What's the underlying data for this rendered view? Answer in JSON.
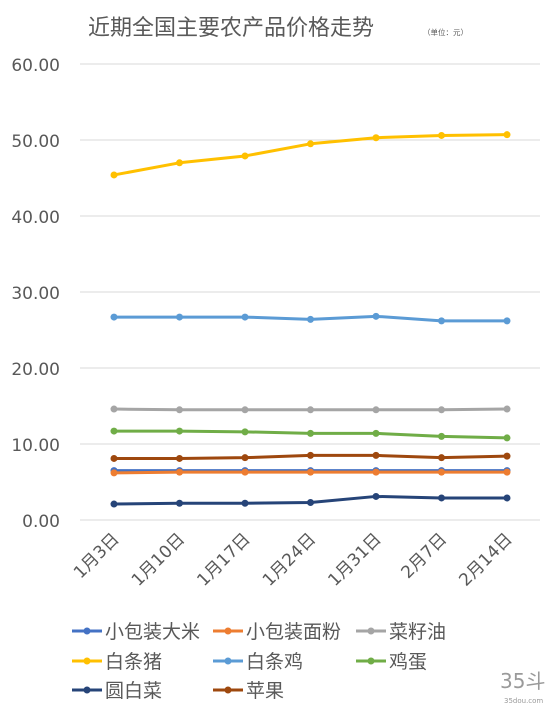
{
  "chart_data": {
    "type": "line",
    "title": "近期全国主要农产品价格走势",
    "unit_note": "（单位：元）",
    "categories": [
      "1月3日",
      "1月10日",
      "1月17日",
      "1月24日",
      "1月31日",
      "2月7日",
      "2月14日"
    ],
    "ylim": [
      0,
      60
    ],
    "yticks": [
      "0.00",
      "10.00",
      "20.00",
      "30.00",
      "40.00",
      "50.00",
      "60.00"
    ],
    "grid": true,
    "legend_position": "bottom",
    "series": [
      {
        "name": "小包装大米",
        "color": "#4472C4",
        "values": [
          6.5,
          6.5,
          6.5,
          6.5,
          6.5,
          6.5,
          6.5
        ]
      },
      {
        "name": "小包装面粉",
        "color": "#ED7D31",
        "values": [
          6.2,
          6.3,
          6.3,
          6.3,
          6.3,
          6.3,
          6.3
        ]
      },
      {
        "name": "菜籽油",
        "color": "#A5A5A5",
        "values": [
          14.6,
          14.5,
          14.5,
          14.5,
          14.5,
          14.5,
          14.6
        ]
      },
      {
        "name": "白条猪",
        "color": "#FFC000",
        "values": [
          45.4,
          47.0,
          47.9,
          49.5,
          50.3,
          50.6,
          50.7
        ]
      },
      {
        "name": "白条鸡",
        "color": "#5B9BD5",
        "values": [
          26.7,
          26.7,
          26.7,
          26.4,
          26.8,
          26.2,
          26.2
        ]
      },
      {
        "name": "鸡蛋",
        "color": "#70AD47",
        "values": [
          11.7,
          11.7,
          11.6,
          11.4,
          11.4,
          11.0,
          10.8
        ]
      },
      {
        "name": "圆白菜",
        "color": "#264478",
        "values": [
          2.1,
          2.2,
          2.2,
          2.3,
          3.1,
          2.9,
          2.9
        ]
      },
      {
        "name": "苹果",
        "color": "#9E480E",
        "values": [
          8.1,
          8.1,
          8.2,
          8.5,
          8.5,
          8.2,
          8.4
        ]
      }
    ]
  },
  "watermark": {
    "logo_text": "35斗",
    "url": "35dou.com"
  }
}
